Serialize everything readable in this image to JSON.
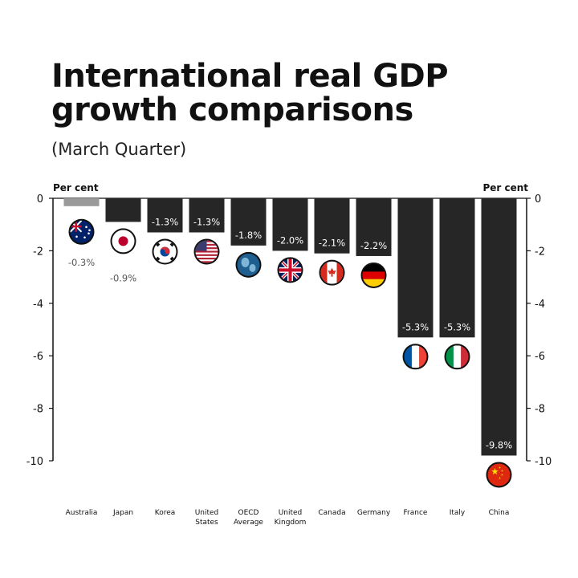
{
  "title_lines": [
    "International real GDP",
    "growth comparisons"
  ],
  "subtitle": "(March Quarter)",
  "colors": {
    "bar": "#262626",
    "highlight_bar": "#9a9a9a",
    "label_on_bar": "#ffffff",
    "label_off_bar": "#555555",
    "axis": "#111111"
  },
  "chart_data": {
    "type": "bar",
    "title": "International real GDP growth comparisons",
    "subtitle": "(March Quarter)",
    "ylabel_left": "Per cent",
    "ylabel_right": "Per cent",
    "ylim": [
      -10,
      0
    ],
    "yticks": [
      0,
      -2,
      -4,
      -6,
      -8,
      -10
    ],
    "grid": false,
    "categories": [
      [
        "Australia"
      ],
      [
        "Japan"
      ],
      [
        "Korea"
      ],
      [
        "United",
        "States"
      ],
      [
        "OECD",
        "Average"
      ],
      [
        "United",
        "Kingdom"
      ],
      [
        "Canada"
      ],
      [
        "Germany"
      ],
      [
        "France"
      ],
      [
        "Italy"
      ],
      [
        "China"
      ]
    ],
    "values": [
      -0.3,
      -0.9,
      -1.3,
      -1.3,
      -1.8,
      -2.0,
      -2.1,
      -2.2,
      -5.3,
      -5.3,
      -9.8
    ],
    "value_labels": [
      "-0.3%",
      "-0.9%",
      "-1.3%",
      "-1.3%",
      "-1.8%",
      "-2.0%",
      "-2.1%",
      "-2.2%",
      "-5.3%",
      "-5.3%",
      "-9.8%"
    ],
    "highlight": "Australia",
    "flag_icons": [
      "australia-flag-icon",
      "japan-flag-icon",
      "korea-flag-icon",
      "usa-flag-icon",
      "oecd-globe-icon",
      "uk-flag-icon",
      "canada-flag-icon",
      "germany-flag-icon",
      "france-flag-icon",
      "italy-flag-icon",
      "china-flag-icon"
    ]
  }
}
